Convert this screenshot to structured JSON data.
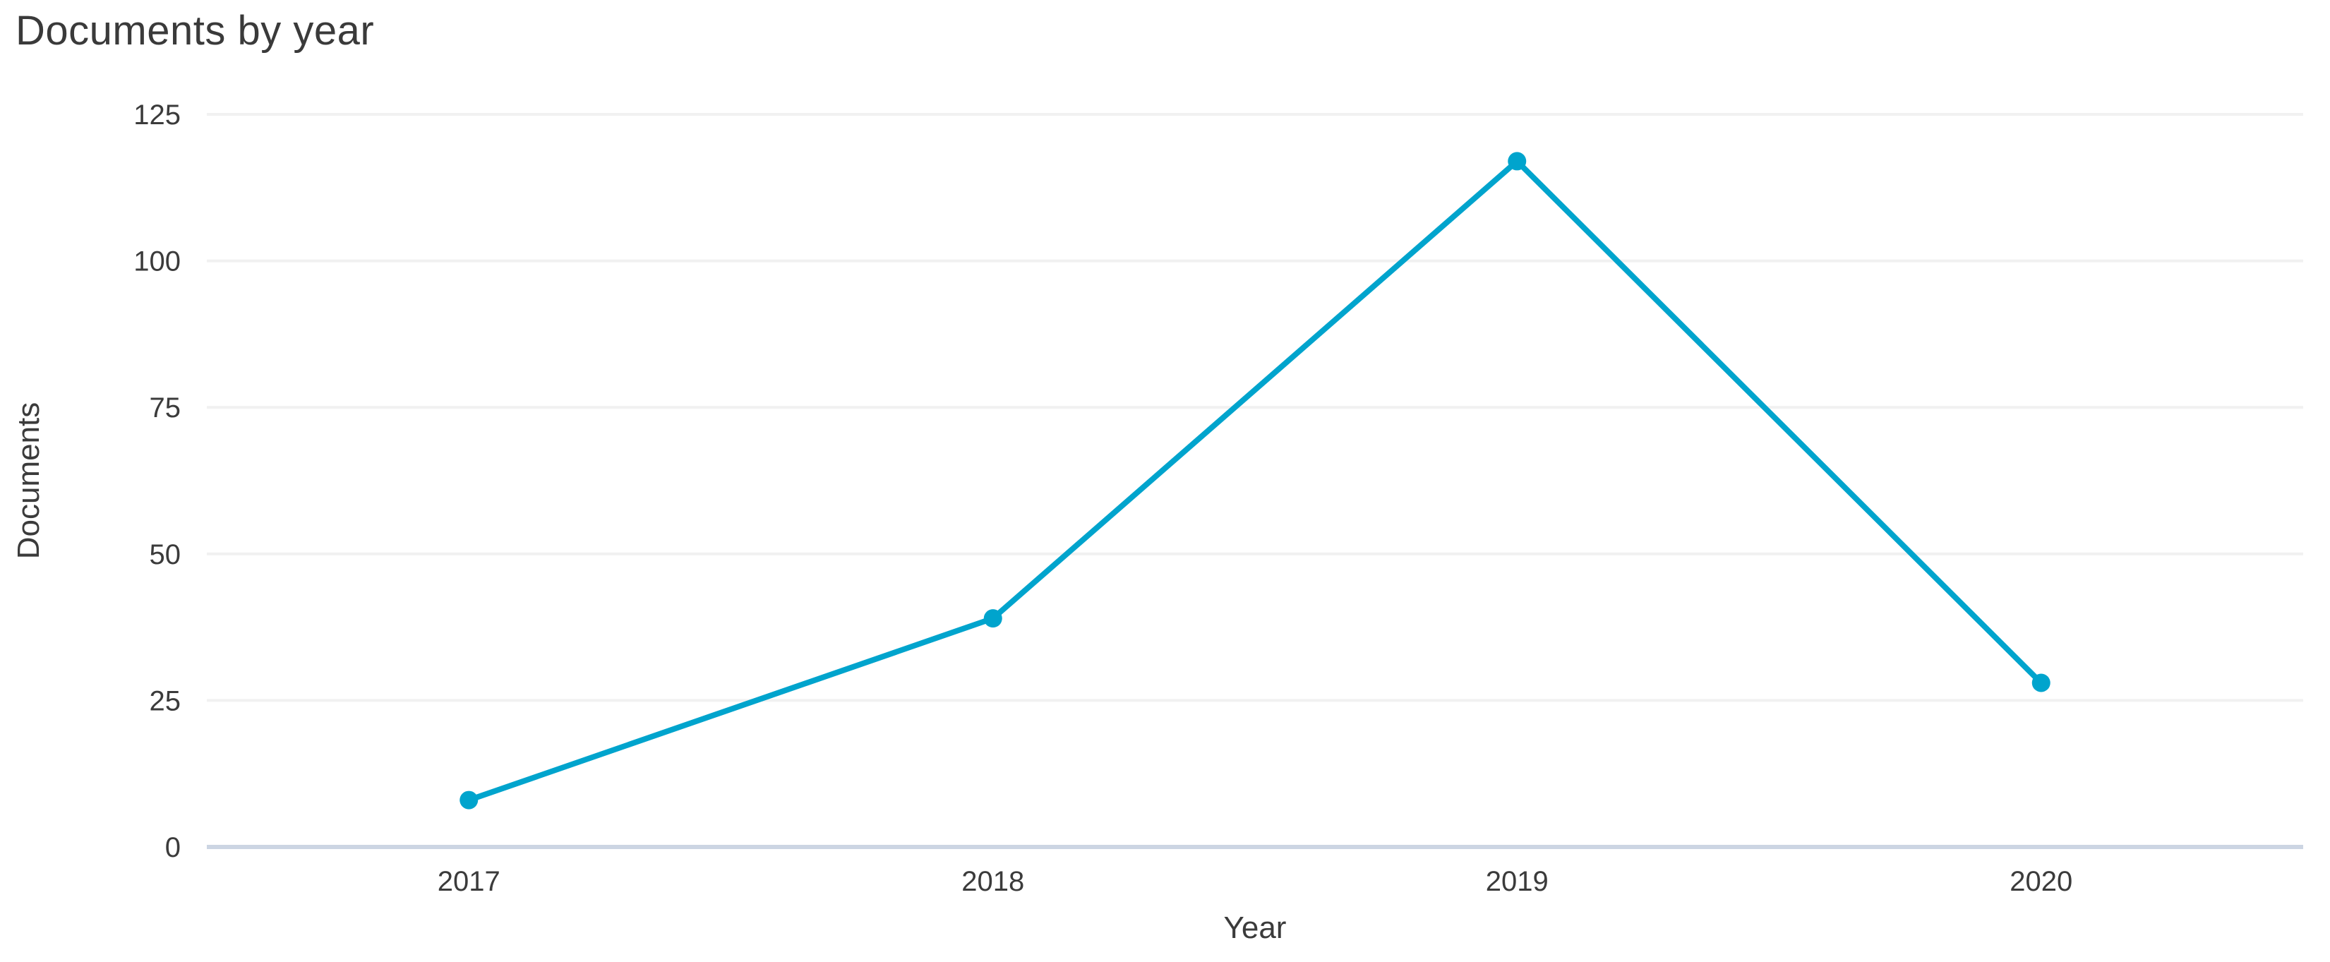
{
  "chart_data": {
    "type": "line",
    "title": "Documents by year",
    "categories": [
      "2017",
      "2018",
      "2019",
      "2020"
    ],
    "series": [
      {
        "name": "Documents",
        "values": [
          8,
          39,
          117,
          28
        ]
      }
    ],
    "xlabel": "Year",
    "ylabel": "Documents",
    "ylim": [
      0,
      125
    ],
    "yticks": [
      0,
      25,
      50,
      75,
      100,
      125
    ],
    "grid": true,
    "legend": "none",
    "colors": {
      "line": "#00a4cd",
      "marker": "#00a4cd",
      "gridline": "#f1f1f1",
      "axis_line": "#ccd5e3",
      "tick_text": "#3b3b3b",
      "title_text": "#3a3a3a",
      "background": "#ffffff"
    }
  }
}
